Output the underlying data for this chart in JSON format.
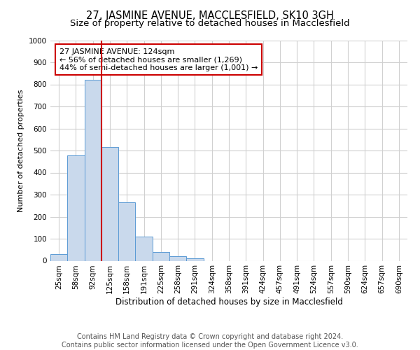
{
  "title": "27, JASMINE AVENUE, MACCLESFIELD, SK10 3GH",
  "subtitle": "Size of property relative to detached houses in Macclesfield",
  "xlabel": "Distribution of detached houses by size in Macclesfield",
  "ylabel": "Number of detached properties",
  "bar_labels": [
    "25sqm",
    "58sqm",
    "92sqm",
    "125sqm",
    "158sqm",
    "191sqm",
    "225sqm",
    "258sqm",
    "291sqm",
    "324sqm",
    "358sqm",
    "391sqm",
    "424sqm",
    "457sqm",
    "491sqm",
    "524sqm",
    "557sqm",
    "590sqm",
    "624sqm",
    "657sqm",
    "690sqm"
  ],
  "bar_values": [
    30,
    478,
    820,
    515,
    265,
    110,
    40,
    20,
    10,
    0,
    0,
    0,
    0,
    0,
    0,
    0,
    0,
    0,
    0,
    0,
    0
  ],
  "bar_color": "#c9d9ec",
  "bar_edge_color": "#5b9bd5",
  "vline_x_index": 3,
  "vline_color": "#cc0000",
  "ylim": [
    0,
    1000
  ],
  "yticks": [
    0,
    100,
    200,
    300,
    400,
    500,
    600,
    700,
    800,
    900,
    1000
  ],
  "annotation_box_text": "27 JASMINE AVENUE: 124sqm\n← 56% of detached houses are smaller (1,269)\n44% of semi-detached houses are larger (1,001) →",
  "annotation_box_color": "#ffffff",
  "annotation_box_edge_color": "#cc0000",
  "footer_line1": "Contains HM Land Registry data © Crown copyright and database right 2024.",
  "footer_line2": "Contains public sector information licensed under the Open Government Licence v3.0.",
  "background_color": "#ffffff",
  "grid_color": "#d0d0d0",
  "title_fontsize": 10.5,
  "subtitle_fontsize": 9.5,
  "annotation_fontsize": 8,
  "footer_fontsize": 7,
  "ylabel_fontsize": 8,
  "xlabel_fontsize": 8.5,
  "tick_fontsize": 7.5
}
